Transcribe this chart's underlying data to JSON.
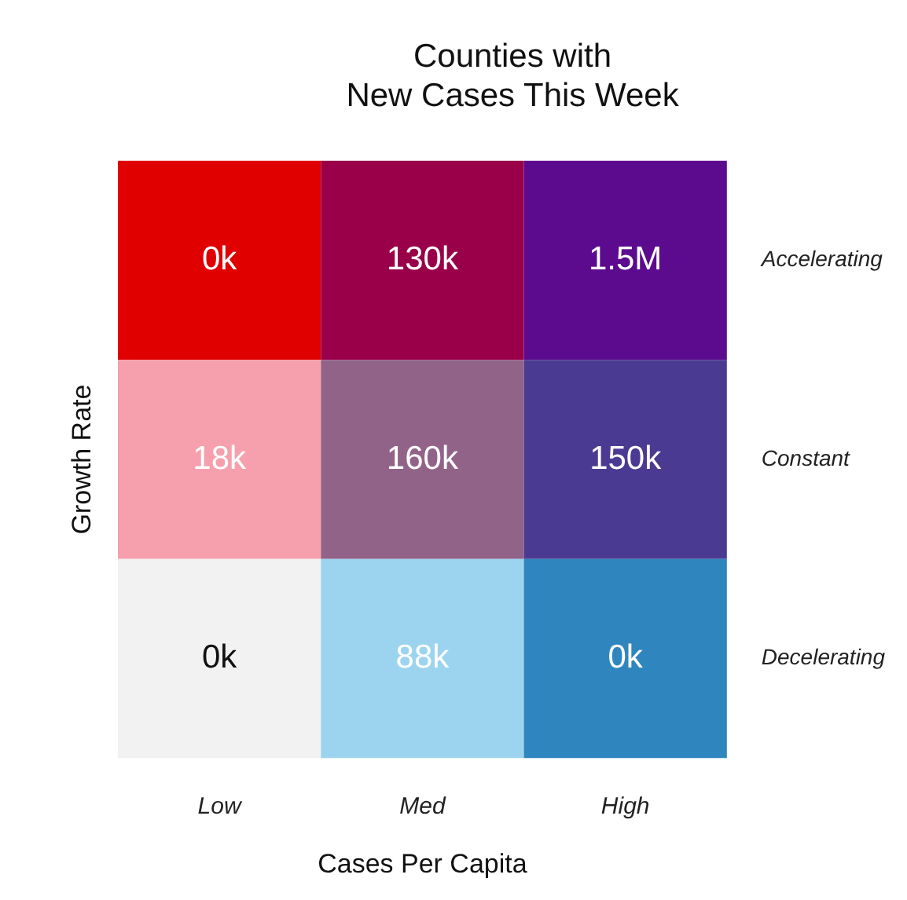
{
  "chart_data": {
    "type": "heatmap",
    "title": "Counties with\nNew Cases This Week",
    "xlabel": "Cases Per Capita",
    "ylabel": "Growth Rate",
    "categories": [
      "Low",
      "Med",
      "High"
    ],
    "y_categories": [
      "Accelerating",
      "Constant",
      "Decelerating"
    ],
    "cells": [
      [
        0,
        130000,
        1500000
      ],
      [
        18000,
        160000,
        150000
      ],
      [
        0,
        88000,
        0
      ]
    ],
    "cell_labels": [
      [
        "0k",
        "130k",
        "1.5M"
      ],
      [
        "18k",
        "160k",
        "150k"
      ],
      [
        "0k",
        "88k",
        "0k"
      ]
    ],
    "colors": [
      [
        "#e00000",
        "#990049",
        "#5c0a8e"
      ],
      [
        "#f7a0ad",
        "#926389",
        "#4b3a92"
      ],
      [
        "#f2f2f2",
        "#9cd4f0",
        "#2f85bd"
      ]
    ]
  }
}
